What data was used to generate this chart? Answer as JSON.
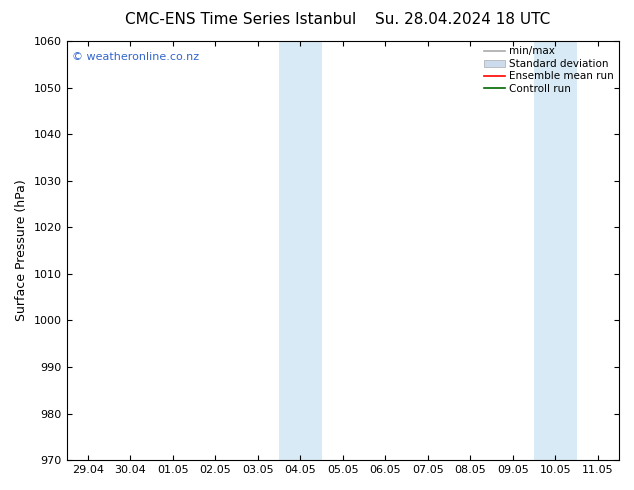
{
  "title_left": "CMC-ENS Time Series Istanbul",
  "title_right": "Su. 28.04.2024 18 UTC",
  "ylabel": "Surface Pressure (hPa)",
  "ylim": [
    970,
    1060
  ],
  "yticks": [
    970,
    980,
    990,
    1000,
    1010,
    1020,
    1030,
    1040,
    1050,
    1060
  ],
  "xtick_labels": [
    "29.04",
    "30.04",
    "01.05",
    "02.05",
    "03.05",
    "04.05",
    "05.05",
    "06.05",
    "07.05",
    "08.05",
    "09.05",
    "10.05",
    "11.05"
  ],
  "xtick_positions": [
    0,
    1,
    2,
    3,
    4,
    5,
    6,
    7,
    8,
    9,
    10,
    11,
    12
  ],
  "xlim": [
    -0.5,
    12.5
  ],
  "shaded_regions": [
    {
      "xmin": 4.5,
      "xmax": 5.5,
      "color": "#d8eaf5"
    },
    {
      "xmin": 10.5,
      "xmax": 11.5,
      "color": "#d8eaf5"
    }
  ],
  "watermark_text": "© weatheronline.co.nz",
  "watermark_color": "#3366cc",
  "background_color": "#ffffff",
  "legend_items": [
    {
      "label": "min/max",
      "color": "#aaaaaa",
      "lw": 1.2,
      "style": "line"
    },
    {
      "label": "Standard deviation",
      "facecolor": "#ccdcec",
      "edgecolor": "#aaaaaa",
      "style": "box"
    },
    {
      "label": "Ensemble mean run",
      "color": "#ff0000",
      "lw": 1.2,
      "style": "line"
    },
    {
      "label": "Controll run",
      "color": "#006600",
      "lw": 1.2,
      "style": "line"
    }
  ],
  "title_fontsize": 11,
  "ylabel_fontsize": 9,
  "tick_fontsize": 8,
  "watermark_fontsize": 8,
  "legend_fontsize": 7.5,
  "fig_width": 6.34,
  "fig_height": 4.9,
  "dpi": 100
}
